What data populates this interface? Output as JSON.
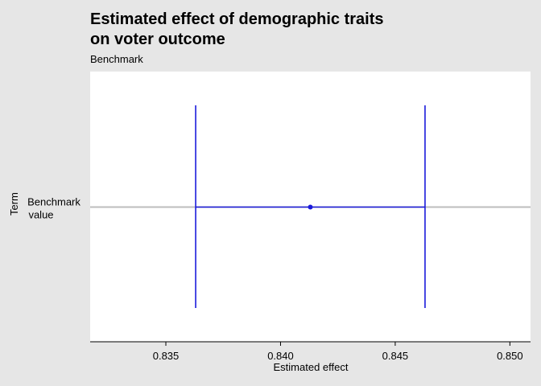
{
  "chart_data": {
    "type": "errorbar",
    "title": "Estimated effect of demographic traits\non voter outcome",
    "subtitle": "Benchmark",
    "xlabel": "Estimated effect",
    "ylabel": "Term",
    "xlim": [
      0.8317,
      0.8509
    ],
    "x_ticks": [
      "0.835",
      "0.840",
      "0.845",
      "0.850"
    ],
    "categories": [
      "Benchmark\nvalue"
    ],
    "points": [
      {
        "term": "Benchmark\nvalue",
        "estimate": 0.8413,
        "ci_low": 0.8363,
        "ci_high": 0.8463
      }
    ],
    "colors": {
      "series": "#1a1adb",
      "refline": "#bdbdbd",
      "panel": "#ffffff",
      "background": "#e6e6e6"
    },
    "grid": false
  }
}
